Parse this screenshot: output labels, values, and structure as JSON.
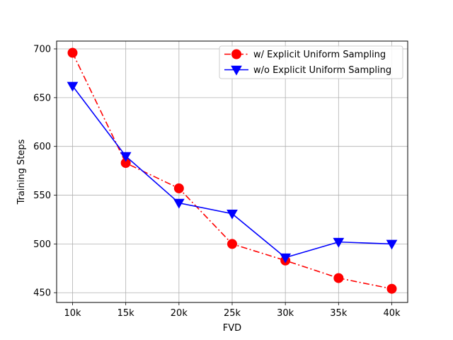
{
  "chart_data": {
    "type": "line",
    "title": "",
    "xlabel": "FVD",
    "ylabel": "Training Steps",
    "categories": [
      "10k",
      "15k",
      "20k",
      "25k",
      "30k",
      "35k",
      "40k"
    ],
    "x": [
      10,
      15,
      20,
      25,
      30,
      35,
      40
    ],
    "ylim": [
      440,
      708
    ],
    "yticks": [
      450,
      500,
      550,
      600,
      650,
      700
    ],
    "grid": true,
    "legend_position": "upper-right",
    "series": [
      {
        "name": "w/ Explicit Uniform Sampling",
        "values": [
          696,
          583,
          557,
          500,
          483,
          465,
          454
        ],
        "color": "#ff0000",
        "line_style": "dash-dot",
        "marker": "circle"
      },
      {
        "name": "w/o Explicit Uniform Sampling",
        "values": [
          662,
          590,
          542,
          531,
          486,
          502,
          500
        ],
        "color": "#0000ff",
        "line_style": "solid",
        "marker": "triangle-down"
      }
    ]
  }
}
